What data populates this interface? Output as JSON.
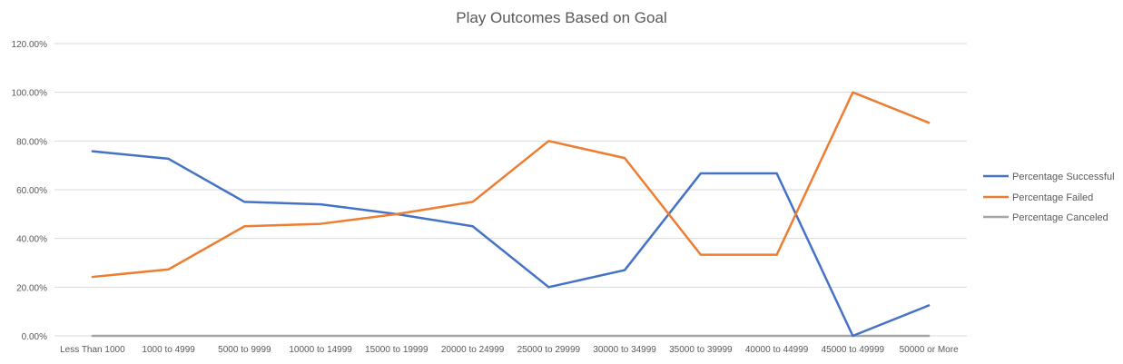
{
  "chart_data": {
    "type": "line",
    "title": "Play Outcomes Based on Goal",
    "xlabel": "",
    "ylabel": "",
    "categories": [
      "Less Than 1000",
      "1000 to 4999",
      "5000 to 9999",
      "10000 to 14999",
      "15000 to 19999",
      "20000 to 24999",
      "25000 to 29999",
      "30000 to 34999",
      "35000 to 39999",
      "40000 to 44999",
      "45000 to 49999",
      "50000 or More"
    ],
    "series": [
      {
        "name": "Percentage Successful",
        "color": "#4472C4",
        "values": [
          75.8,
          72.7,
          55.0,
          54.0,
          50.0,
          45.0,
          20.0,
          27.0,
          66.7,
          66.7,
          0.0,
          12.5
        ]
      },
      {
        "name": "Percentage Failed",
        "color": "#ED7D31",
        "values": [
          24.2,
          27.3,
          45.0,
          46.0,
          50.0,
          55.0,
          80.0,
          73.0,
          33.3,
          33.3,
          100.0,
          87.5
        ]
      },
      {
        "name": "Percentage Canceled",
        "color": "#A5A5A5",
        "values": [
          0,
          0,
          0,
          0,
          0,
          0,
          0,
          0,
          0,
          0,
          0,
          0
        ]
      }
    ],
    "ylim": [
      0,
      120
    ],
    "yticks": [
      "0.00%",
      "20.00%",
      "40.00%",
      "60.00%",
      "80.00%",
      "100.00%",
      "120.00%"
    ],
    "ytick_values": [
      0,
      20,
      40,
      60,
      80,
      100,
      120
    ],
    "grid": true,
    "legend_position": "right"
  }
}
